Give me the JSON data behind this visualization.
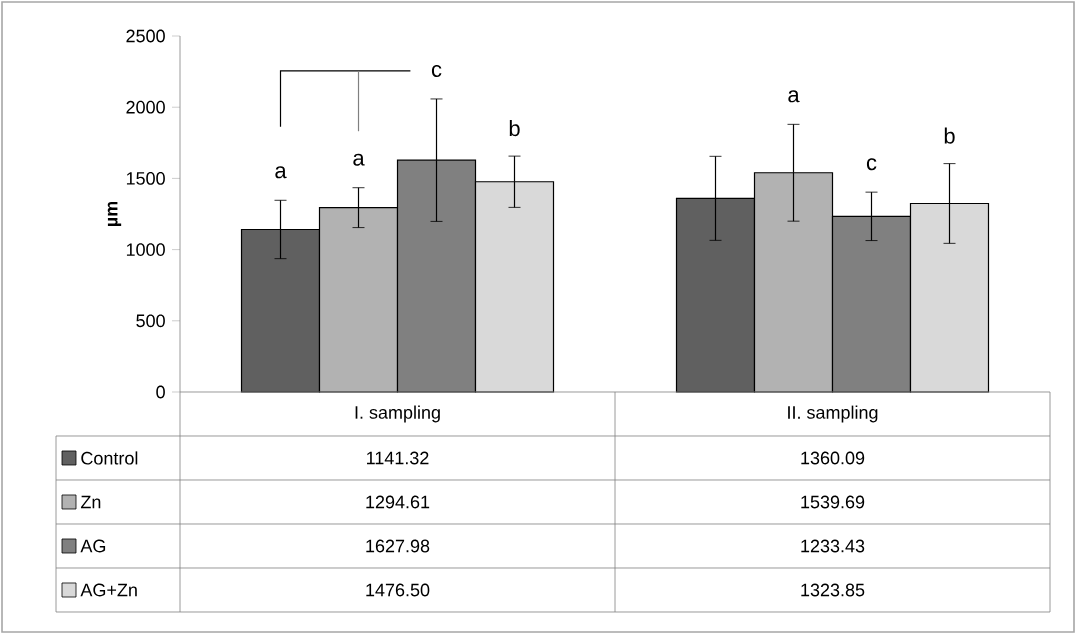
{
  "chart_data": {
    "type": "bar",
    "ylabel": "µm",
    "categories": [
      "I. sampling",
      "II. sampling"
    ],
    "series": [
      {
        "name": "Control",
        "color": "#606060",
        "values": [
          1141.32,
          1360.09
        ],
        "value_labels": [
          "1141.32",
          "1360.09"
        ],
        "errors": [
          205,
          295
        ]
      },
      {
        "name": "Zn",
        "color": "#b2b2b2",
        "values": [
          1294.61,
          1539.69
        ],
        "value_labels": [
          "1294.61",
          "1539.69"
        ],
        "errors": [
          140,
          340
        ]
      },
      {
        "name": "AG",
        "color": "#808080",
        "values": [
          1627.98,
          1233.43
        ],
        "value_labels": [
          "1627.98",
          "1233.43"
        ],
        "errors": [
          430,
          170
        ]
      },
      {
        "name": "AG+Zn",
        "color": "#d9d9d9",
        "values": [
          1476.5,
          1323.85
        ],
        "value_labels": [
          "1476.50",
          "1323.85"
        ],
        "errors": [
          180,
          280
        ]
      }
    ],
    "ylim": [
      0,
      2500
    ],
    "yticks": [
      0,
      500,
      1000,
      1500,
      2000,
      2500
    ],
    "grid": false,
    "legend": "bottom",
    "annotations": [
      "a",
      "a",
      "c",
      "b",
      "a",
      "c",
      "b"
    ]
  }
}
